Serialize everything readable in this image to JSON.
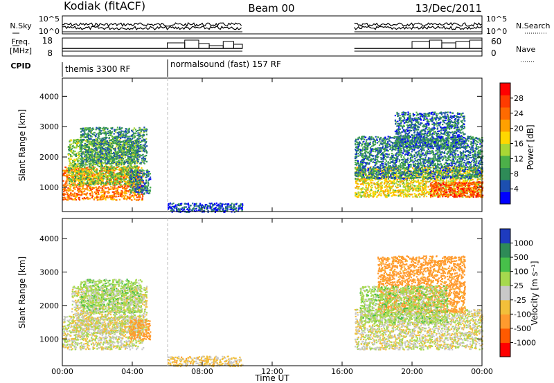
{
  "header": {
    "station": "Kodiak (fitACF)",
    "beam": "Beam 00",
    "date": "13/Dec/2011"
  },
  "chart_data": [
    {
      "type": "line",
      "panel": "noise",
      "left_label": "N.Sky",
      "right_label": "N.Search",
      "left_ticks": [
        "10^5",
        "10^0"
      ],
      "right_ticks": [
        "10^5",
        "10^0"
      ],
      "segments_hours": [
        [
          0,
          10.3
        ],
        [
          16.7,
          24
        ]
      ]
    },
    {
      "type": "line",
      "panel": "frequency",
      "left_label": "Freq.",
      "left_unit": "[MHz]",
      "right_label": "Nave",
      "left_ticks": [
        18,
        8
      ],
      "right_ticks": [
        60,
        0
      ]
    },
    {
      "type": "table",
      "panel": "cpid",
      "label": "CPID",
      "programs": [
        {
          "name": "themis 3300 RF",
          "start_hour": 0
        },
        {
          "name": "normalsound (fast) 157 RF",
          "start_hour": 6
        }
      ]
    },
    {
      "type": "heatmap",
      "panel": "power",
      "ylabel": "Slant Range [km]",
      "yticks": [
        1000,
        2000,
        3000,
        4000
      ],
      "ylim": [
        200,
        4600
      ],
      "colorbar": {
        "label": "Power [dB]",
        "ticks": [
          4,
          8,
          12,
          16,
          20,
          24,
          28
        ],
        "colors": [
          "#0000ff",
          "#1c4fb0",
          "#2e8b57",
          "#4cb049",
          "#a9d735",
          "#ffd700",
          "#ffa000",
          "#ff6a00",
          "#ff3b00",
          "#ff0000"
        ]
      },
      "blobs": [
        {
          "t0": 0,
          "t1": 4.6,
          "r0": 600,
          "r1": 1700,
          "value": 24
        },
        {
          "t0": 0.3,
          "t1": 4.3,
          "r0": 1100,
          "r1": 2600,
          "value": 14
        },
        {
          "t0": 1.0,
          "t1": 4.8,
          "r0": 1800,
          "r1": 3000,
          "value": 10
        },
        {
          "t0": 3.8,
          "t1": 5.0,
          "r0": 800,
          "r1": 1600,
          "value": 9
        },
        {
          "t0": 6.0,
          "t1": 10.3,
          "r0": 200,
          "r1": 500,
          "value": 6
        },
        {
          "t0": 16.7,
          "t1": 24.0,
          "r0": 700,
          "r1": 1700,
          "value": 18
        },
        {
          "t0": 16.7,
          "t1": 24.0,
          "r0": 1300,
          "r1": 2700,
          "value": 9
        },
        {
          "t0": 19.0,
          "t1": 23.0,
          "r0": 2300,
          "r1": 3500,
          "value": 8
        },
        {
          "t0": 21.0,
          "t1": 24.0,
          "r0": 700,
          "r1": 1200,
          "value": 26
        }
      ]
    },
    {
      "type": "heatmap",
      "panel": "velocity",
      "xlabel": "Time UT",
      "ylabel": "Slant Range [km]",
      "xticks": [
        "00:00",
        "04:00",
        "08:00",
        "12:00",
        "16:00",
        "20:00",
        "00:00"
      ],
      "yticks": [
        1000,
        2000,
        3000,
        4000
      ],
      "ylim": [
        200,
        4600
      ],
      "colorbar": {
        "label": "Velocity [m s⁻¹]",
        "ticks": [
          1000,
          500,
          100,
          25,
          -25,
          -100,
          -500,
          -1000
        ],
        "colors": [
          "#1e3bbf",
          "#2e8b57",
          "#47c04a",
          "#a6d94e",
          "#c8c8c8",
          "#f2bf3a",
          "#ff9a2e",
          "#ff5a00",
          "#ff0000"
        ]
      },
      "blobs": [
        {
          "t0": 0,
          "t1": 4.6,
          "r0": 700,
          "r1": 1700,
          "value": 0
        },
        {
          "t0": 0.5,
          "t1": 4.8,
          "r0": 1200,
          "r1": 2600,
          "value": 0
        },
        {
          "t0": 3.8,
          "t1": 5.0,
          "r0": 1000,
          "r1": 1600,
          "value": -150
        },
        {
          "t0": 1.0,
          "t1": 4.5,
          "r0": 1800,
          "r1": 2800,
          "value": 60
        },
        {
          "t0": 6.0,
          "t1": 10.3,
          "r0": 200,
          "r1": 500,
          "value": -50
        },
        {
          "t0": 16.7,
          "t1": 24.0,
          "r0": 700,
          "r1": 1900,
          "value": 0
        },
        {
          "t0": 18.0,
          "t1": 23.0,
          "r0": 1800,
          "r1": 3500,
          "value": -150
        },
        {
          "t0": 17.0,
          "t1": 22.0,
          "r0": 1500,
          "r1": 2600,
          "value": 60
        }
      ]
    }
  ]
}
